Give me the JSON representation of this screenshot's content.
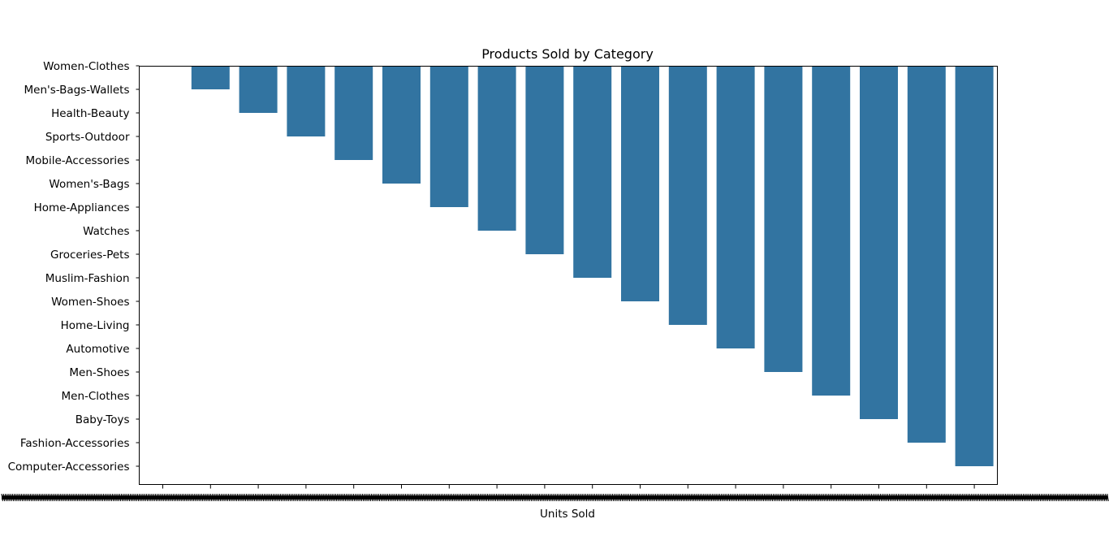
{
  "chart_data": {
    "type": "bar",
    "title": "Products Sold by Category",
    "xlabel": "Units Sold",
    "ylabel": "",
    "categories": [
      "Women-Clothes",
      "Men's-Bags-Wallets",
      "Health-Beauty",
      "Sports-Outdoor",
      "Mobile-Accessories",
      "Women's-Bags",
      "Home-Appliances",
      "Watches",
      "Groceries-Pets",
      "Muslim-Fashion",
      "Women-Shoes",
      "Home-Living",
      "Automotive",
      "Men-Shoes",
      "Men-Clothes",
      "Baby-Toys",
      "Fashion-Accessories",
      "Computer-Accessories"
    ],
    "values": [
      0,
      1,
      2,
      3,
      4,
      5,
      6,
      7,
      8,
      9,
      10,
      11,
      12,
      13,
      14,
      15,
      16,
      17
    ],
    "bar_color": "#3274a1",
    "grid": false,
    "x_tick_count": 18
  }
}
